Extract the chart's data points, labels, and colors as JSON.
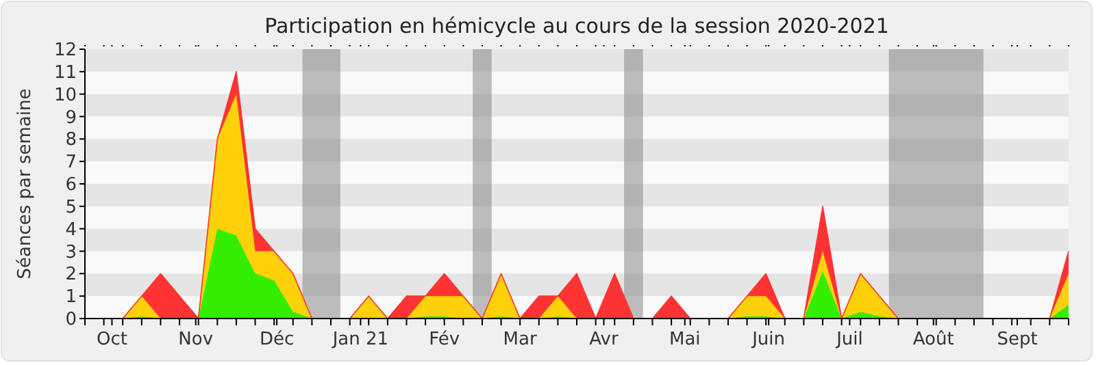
{
  "chart_data": {
    "type": "area",
    "stacked": true,
    "title": "Participation en hémicycle au cours de la session 2020-2021",
    "ylabel": "Séances par semaine",
    "x": [
      "2020-09-21",
      "2020-09-28",
      "2020-10-05",
      "2020-10-12",
      "2020-10-19",
      "2020-10-26",
      "2020-11-02",
      "2020-11-09",
      "2020-11-16",
      "2020-11-23",
      "2020-11-30",
      "2020-12-07",
      "2020-12-14",
      "2020-12-21",
      "2020-12-28",
      "2021-01-04",
      "2021-01-11",
      "2021-01-18",
      "2021-01-25",
      "2021-02-01",
      "2021-02-08",
      "2021-02-15",
      "2021-02-22",
      "2021-03-01",
      "2021-03-08",
      "2021-03-15",
      "2021-03-22",
      "2021-03-29",
      "2021-04-05",
      "2021-04-12",
      "2021-04-19",
      "2021-04-26",
      "2021-05-03",
      "2021-05-10",
      "2021-05-17",
      "2021-05-24",
      "2021-05-31",
      "2021-06-07",
      "2021-06-14",
      "2021-06-21",
      "2021-06-28",
      "2021-07-05",
      "2021-07-12",
      "2021-07-19",
      "2021-07-26",
      "2021-08-02",
      "2021-08-09",
      "2021-08-16",
      "2021-08-23",
      "2021-08-30",
      "2021-09-06",
      "2021-09-13",
      "2021-09-20"
    ],
    "series": [
      {
        "color": "#33ee00",
        "values": [
          0,
          0,
          0,
          0.1,
          0,
          0,
          0,
          4,
          3.7,
          2,
          1.7,
          0.3,
          0,
          0,
          0,
          0,
          0,
          0,
          0.1,
          0.1,
          0,
          0,
          0.1,
          0,
          0,
          0.1,
          0,
          0,
          0,
          0,
          0,
          0,
          0,
          0,
          0,
          0.1,
          0.1,
          0,
          0,
          2.1,
          0,
          0.3,
          0.1,
          0,
          0,
          0,
          0,
          0,
          0,
          0,
          0,
          0,
          0.6
        ]
      },
      {
        "color": "#ffd10a",
        "values": [
          0,
          0,
          0,
          0.9,
          0,
          0,
          0,
          4,
          6.3,
          1,
          1.3,
          1.7,
          0,
          0,
          0,
          1,
          0,
          0,
          0.9,
          0.9,
          1,
          0,
          1.9,
          0,
          0,
          0.9,
          0,
          0,
          0,
          0,
          0,
          0,
          0,
          0,
          0,
          0.9,
          0.9,
          0,
          0,
          0.9,
          0,
          1.7,
          0.9,
          0,
          0,
          0,
          0,
          0,
          0,
          0,
          0,
          0,
          1.4
        ]
      },
      {
        "color": "#ff3333",
        "values": [
          0,
          0,
          0,
          0,
          2,
          1,
          0,
          0,
          1,
          1,
          0,
          0,
          0,
          0,
          0,
          0,
          0,
          1,
          0,
          1,
          0,
          0,
          0,
          0,
          1,
          0,
          2,
          0,
          2,
          0,
          0,
          1,
          0,
          0,
          0,
          0,
          1,
          0,
          0,
          2,
          0,
          0,
          0,
          0,
          0,
          0,
          0,
          0,
          0,
          0,
          0,
          0,
          1
        ]
      }
    ],
    "xlim": [
      "2020-09-21",
      "2021-09-20"
    ],
    "xticks": [
      {
        "value": "2020-09-21",
        "label": null
      },
      {
        "value": "2020-09-28",
        "label": null
      },
      {
        "value": "2020-10-01",
        "label": "Oct"
      },
      {
        "value": "2020-10-05",
        "label": null
      },
      {
        "value": "2020-10-12",
        "label": null
      },
      {
        "value": "2020-10-19",
        "label": null
      },
      {
        "value": "2020-10-26",
        "label": null
      },
      {
        "value": "2020-11-01",
        "label": "Nov"
      },
      {
        "value": "2020-11-02",
        "label": null
      },
      {
        "value": "2020-11-09",
        "label": null
      },
      {
        "value": "2020-11-16",
        "label": null
      },
      {
        "value": "2020-11-23",
        "label": null
      },
      {
        "value": "2020-11-30",
        "label": null
      },
      {
        "value": "2020-12-01",
        "label": "Déc"
      },
      {
        "value": "2020-12-07",
        "label": null
      },
      {
        "value": "2020-12-14",
        "label": null
      },
      {
        "value": "2020-12-21",
        "label": null
      },
      {
        "value": "2020-12-28",
        "label": null
      },
      {
        "value": "2021-01-01",
        "label": "Jan 21"
      },
      {
        "value": "2021-01-04",
        "label": null
      },
      {
        "value": "2021-01-11",
        "label": null
      },
      {
        "value": "2021-01-18",
        "label": null
      },
      {
        "value": "2021-01-25",
        "label": null
      },
      {
        "value": "2021-02-01",
        "label": "Fév"
      },
      {
        "value": "2021-02-08",
        "label": null
      },
      {
        "value": "2021-02-15",
        "label": null
      },
      {
        "value": "2021-02-22",
        "label": null
      },
      {
        "value": "2021-03-01",
        "label": "Mar"
      },
      {
        "value": "2021-03-08",
        "label": null
      },
      {
        "value": "2021-03-15",
        "label": null
      },
      {
        "value": "2021-03-22",
        "label": null
      },
      {
        "value": "2021-03-29",
        "label": null
      },
      {
        "value": "2021-04-01",
        "label": "Avr"
      },
      {
        "value": "2021-04-05",
        "label": null
      },
      {
        "value": "2021-04-12",
        "label": null
      },
      {
        "value": "2021-04-19",
        "label": null
      },
      {
        "value": "2021-04-26",
        "label": null
      },
      {
        "value": "2021-05-01",
        "label": "Mai"
      },
      {
        "value": "2021-05-03",
        "label": null
      },
      {
        "value": "2021-05-10",
        "label": null
      },
      {
        "value": "2021-05-17",
        "label": null
      },
      {
        "value": "2021-05-24",
        "label": null
      },
      {
        "value": "2021-05-31",
        "label": null
      },
      {
        "value": "2021-06-01",
        "label": "Juin"
      },
      {
        "value": "2021-06-07",
        "label": null
      },
      {
        "value": "2021-06-14",
        "label": null
      },
      {
        "value": "2021-06-21",
        "label": null
      },
      {
        "value": "2021-06-28",
        "label": null
      },
      {
        "value": "2021-07-01",
        "label": "Juil"
      },
      {
        "value": "2021-07-05",
        "label": null
      },
      {
        "value": "2021-07-12",
        "label": null
      },
      {
        "value": "2021-07-19",
        "label": null
      },
      {
        "value": "2021-07-26",
        "label": null
      },
      {
        "value": "2021-08-01",
        "label": "Août"
      },
      {
        "value": "2021-08-02",
        "label": null
      },
      {
        "value": "2021-08-09",
        "label": null
      },
      {
        "value": "2021-08-16",
        "label": null
      },
      {
        "value": "2021-08-23",
        "label": null
      },
      {
        "value": "2021-08-30",
        "label": null
      },
      {
        "value": "2021-09-01",
        "label": "Sept"
      },
      {
        "value": "2021-09-06",
        "label": null
      },
      {
        "value": "2021-09-13",
        "label": null
      },
      {
        "value": "2021-09-20",
        "label": null
      }
    ],
    "ylim": [
      0,
      12
    ],
    "yticks": [
      0,
      1,
      2,
      3,
      4,
      5,
      6,
      7,
      8,
      9,
      10,
      11,
      12
    ],
    "bands": [
      {
        "axis": "x",
        "from": "2020-12-10T12:00",
        "to": "2020-12-24T12:00",
        "color": "#808080"
      },
      {
        "axis": "x",
        "from": "2021-02-11T12:00",
        "to": "2021-02-18T12:00",
        "color": "#808080"
      },
      {
        "axis": "x",
        "from": "2021-04-08T12:00",
        "to": "2021-04-15T12:00",
        "color": "#808080"
      },
      {
        "axis": "x",
        "from": "2021-07-15T12:00",
        "to": "2021-08-19T12:00",
        "color": "#808080"
      }
    ]
  }
}
